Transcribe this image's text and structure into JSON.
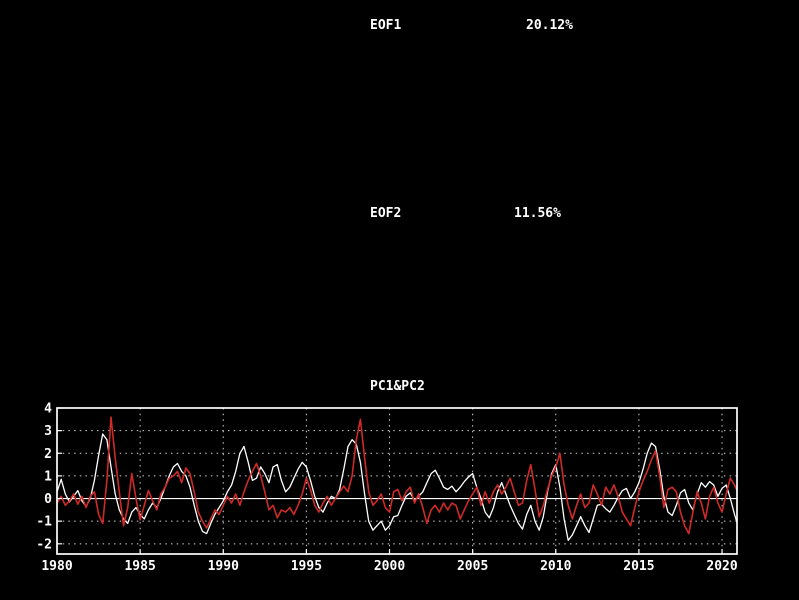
{
  "eof_sections": [
    {
      "label": "EOF1",
      "variance": "20.12%"
    },
    {
      "label": "EOF2",
      "variance": "11.56%"
    }
  ],
  "colors": {
    "background": "#000000",
    "text": "#ffffff",
    "grid": "#cfcfcf",
    "pc1": "#ffffff",
    "pc2": "#cf2a27"
  },
  "chart_data": {
    "type": "line",
    "title": "PC1&PC2",
    "xlabel": "",
    "ylabel": "",
    "xlim": [
      1980,
      2020.9
    ],
    "ylim": [
      -2.45,
      4.0
    ],
    "xticks": [
      1980,
      1985,
      1990,
      1995,
      2000,
      2005,
      2010,
      2015,
      2020
    ],
    "yticks": [
      -2,
      -1,
      0,
      1,
      2,
      3,
      4
    ],
    "grid": "dotted",
    "zero_line": true,
    "legend_position": "none",
    "x_start": 1980.0,
    "x_step": 0.25,
    "series": [
      {
        "name": "PC1",
        "color": "#ffffff",
        "values": [
          0.3,
          0.85,
          0.2,
          -0.15,
          0.1,
          0.35,
          -0.1,
          -0.35,
          0.0,
          0.8,
          1.9,
          2.85,
          2.6,
          1.4,
          0.2,
          -0.5,
          -0.9,
          -1.1,
          -0.6,
          -0.4,
          -0.7,
          -0.9,
          -0.5,
          -0.2,
          -0.4,
          0.0,
          0.5,
          1.0,
          1.4,
          1.55,
          1.2,
          1.0,
          0.5,
          -0.3,
          -1.0,
          -1.45,
          -1.55,
          -1.1,
          -0.7,
          -0.4,
          -0.1,
          0.3,
          0.6,
          1.2,
          2.0,
          2.3,
          1.6,
          0.8,
          0.9,
          1.4,
          1.1,
          0.7,
          1.4,
          1.5,
          0.8,
          0.3,
          0.5,
          0.9,
          1.3,
          1.6,
          1.4,
          0.8,
          0.1,
          -0.4,
          -0.6,
          -0.2,
          0.1,
          0.0,
          0.4,
          1.3,
          2.3,
          2.6,
          2.4,
          1.6,
          0.2,
          -1.0,
          -1.4,
          -1.2,
          -1.0,
          -1.4,
          -1.2,
          -0.8,
          -0.75,
          -0.3,
          0.1,
          0.25,
          -0.1,
          0.1,
          0.3,
          0.7,
          1.1,
          1.25,
          0.9,
          0.5,
          0.4,
          0.55,
          0.3,
          0.5,
          0.75,
          0.95,
          1.1,
          0.5,
          0.0,
          -0.6,
          -0.85,
          -0.4,
          0.3,
          0.7,
          0.2,
          -0.3,
          -0.7,
          -1.1,
          -1.35,
          -0.7,
          -0.3,
          -1.0,
          -1.4,
          -0.8,
          0.3,
          1.1,
          1.5,
          0.5,
          -0.9,
          -1.85,
          -1.6,
          -1.2,
          -0.8,
          -1.2,
          -1.5,
          -0.9,
          -0.3,
          -0.25,
          -0.45,
          -0.6,
          -0.3,
          0.05,
          0.35,
          0.45,
          0.0,
          0.3,
          0.7,
          1.3,
          2.0,
          2.45,
          2.3,
          1.3,
          0.1,
          -0.6,
          -0.75,
          -0.3,
          0.25,
          0.4,
          -0.2,
          -0.5,
          0.2,
          0.7,
          0.5,
          0.75,
          0.6,
          0.1,
          0.45,
          0.6,
          0.0,
          -0.7,
          -1.3
        ]
      },
      {
        "name": "PC2",
        "color": "#cf2a27",
        "values": [
          -0.2,
          0.1,
          -0.3,
          -0.1,
          0.2,
          -0.25,
          0.1,
          -0.4,
          0.1,
          0.3,
          -0.7,
          -1.1,
          0.8,
          3.6,
          1.8,
          0.3,
          -1.2,
          -0.4,
          1.1,
          0.0,
          -0.95,
          -0.3,
          0.35,
          -0.1,
          -0.5,
          0.2,
          0.5,
          0.9,
          1.0,
          1.2,
          0.7,
          1.35,
          1.1,
          0.3,
          -0.6,
          -1.0,
          -1.3,
          -0.9,
          -0.5,
          -0.7,
          -0.3,
          0.1,
          -0.2,
          0.2,
          -0.3,
          0.3,
          0.8,
          1.2,
          1.55,
          1.0,
          0.3,
          -0.5,
          -0.3,
          -0.85,
          -0.5,
          -0.6,
          -0.4,
          -0.7,
          -0.3,
          0.2,
          0.9,
          0.4,
          -0.3,
          -0.6,
          -0.2,
          0.1,
          -0.3,
          0.0,
          0.3,
          0.55,
          0.3,
          1.0,
          2.6,
          3.5,
          1.8,
          0.3,
          -0.3,
          -0.1,
          0.2,
          -0.4,
          -0.6,
          0.3,
          0.4,
          -0.1,
          0.3,
          0.5,
          -0.2,
          0.2,
          -0.4,
          -1.1,
          -0.5,
          -0.3,
          -0.6,
          -0.2,
          -0.5,
          -0.2,
          -0.3,
          -0.9,
          -0.5,
          -0.1,
          0.2,
          0.5,
          -0.3,
          0.3,
          -0.2,
          0.3,
          0.6,
          0.2,
          0.5,
          0.9,
          0.3,
          -0.3,
          -0.2,
          0.8,
          1.5,
          0.4,
          -0.8,
          -0.3,
          0.4,
          1.0,
          1.4,
          2.0,
          0.6,
          -0.3,
          -0.9,
          -0.3,
          0.2,
          -0.4,
          -0.2,
          0.6,
          0.2,
          -0.3,
          0.5,
          0.2,
          0.6,
          0.1,
          -0.6,
          -0.9,
          -1.2,
          -0.4,
          0.3,
          0.8,
          1.2,
          1.7,
          2.1,
          1.0,
          -0.4,
          0.4,
          0.5,
          0.3,
          -0.6,
          -1.2,
          -1.55,
          -0.6,
          0.3,
          -0.2,
          -0.9,
          0.1,
          0.5,
          -0.2,
          -0.6,
          0.2,
          0.9,
          0.6,
          0.2
        ]
      }
    ]
  }
}
